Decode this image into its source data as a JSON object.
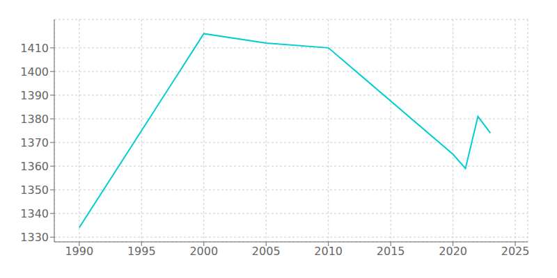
{
  "chart_data": {
    "type": "line",
    "x": [
      1990,
      2000,
      2005,
      2010,
      2020,
      2021,
      2022,
      2023
    ],
    "values": [
      1334,
      1416,
      1412,
      1410,
      1365,
      1359,
      1381,
      1374
    ],
    "color": "#00CED1",
    "xlim": [
      1988,
      2026
    ],
    "ylim": [
      1328,
      1422
    ],
    "xticks": [
      1990,
      1995,
      2000,
      2005,
      2010,
      2015,
      2020,
      2025
    ],
    "yticks": [
      1330,
      1340,
      1350,
      1360,
      1370,
      1380,
      1390,
      1400,
      1410
    ],
    "grid": true
  }
}
